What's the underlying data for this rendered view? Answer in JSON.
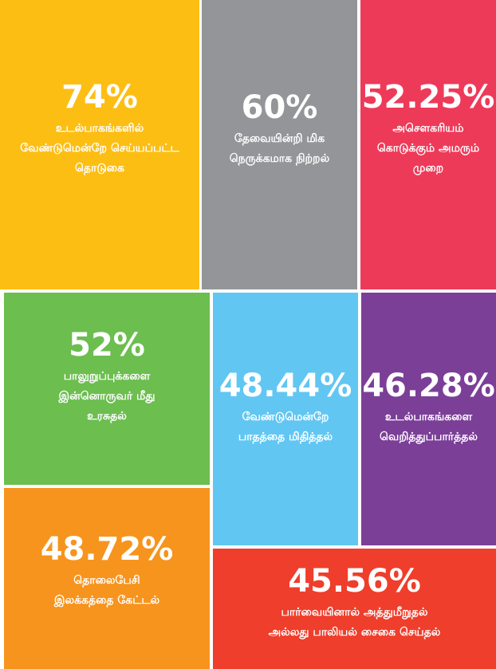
{
  "tiles": [
    {
      "percent": "74%",
      "lines": [
        "உடல்பாகங்களில்",
        "வேண்டுமென்றே செய்யப்பட்ட",
        "தொடுகை"
      ]
    },
    {
      "percent": "60%",
      "lines": [
        "தேவையின்றி மிக",
        "நெருக்கமாக நிற்றல்"
      ]
    },
    {
      "percent": "52.25%",
      "lines": [
        "அசௌகரியம்",
        "கொடுக்கும் அமரும்",
        "முறை"
      ]
    },
    {
      "percent": "52%",
      "lines": [
        "பாலுறுப்புக்களை",
        "இன்னொருவர் மீது",
        "உரசுதல்"
      ]
    },
    {
      "percent": "48.44%",
      "lines": [
        "வேண்டுமென்றே",
        "பாதத்தை மிதித்தல்"
      ]
    },
    {
      "percent": "46.28%",
      "lines": [
        "உடல்பாகங்களை",
        "வெறித்துப்பார்த்தல்"
      ]
    },
    {
      "percent": "48.72%",
      "lines": [
        "தொலைபேசி",
        "இலக்கத்தை கேட்டல்"
      ]
    },
    {
      "percent": "45.56%",
      "lines": [
        "பார்வையினால் அத்துமீறுதல்",
        "அல்லது பாலியல் சைகை செய்தல்"
      ]
    }
  ]
}
